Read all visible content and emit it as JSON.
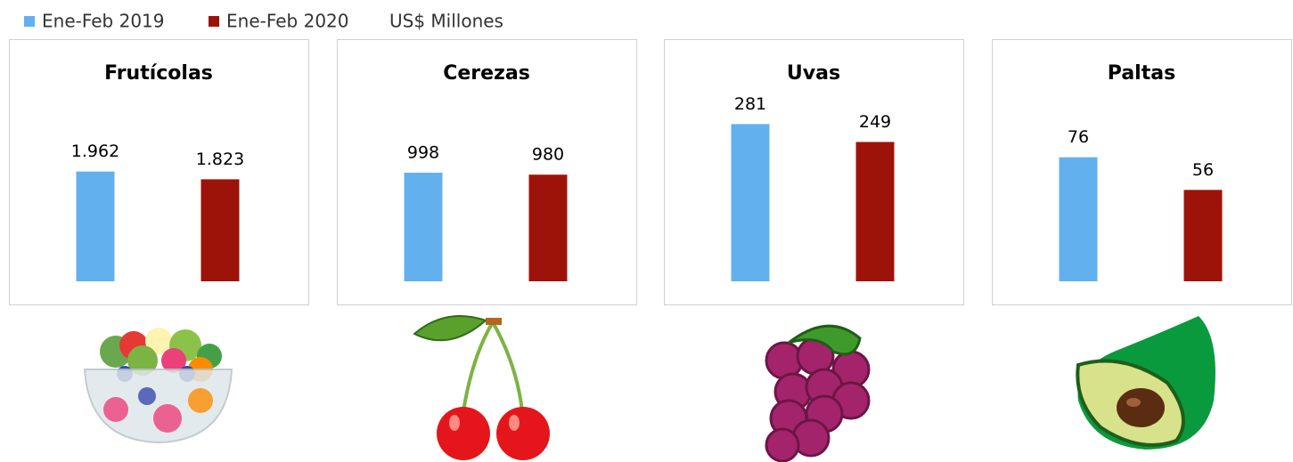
{
  "legend": {
    "items": [
      {
        "name": "Ene-Feb 2019",
        "color": "#63b0ef"
      },
      {
        "name": "Ene-Feb 2020",
        "color": "#9e1309"
      }
    ],
    "note": "US$ Millones"
  },
  "chart_data": [
    {
      "type": "bar",
      "title": "Frutícolas",
      "values": [
        1962,
        1823
      ],
      "value_labels": [
        "1.962",
        "1.823"
      ],
      "ylim": [
        0,
        3500
      ]
    },
    {
      "type": "bar",
      "title": "Cerezas",
      "values": [
        998,
        980
      ],
      "value_labels": [
        "998",
        "980"
      ],
      "ylim": [
        0,
        1800
      ]
    },
    {
      "type": "bar",
      "title": "Uvas",
      "values": [
        281,
        249
      ],
      "value_labels": [
        "281",
        "249"
      ],
      "ylim": [
        0,
        350
      ]
    },
    {
      "type": "bar",
      "title": "Paltas",
      "values": [
        76,
        56
      ],
      "value_labels": [
        "76",
        "56"
      ],
      "ylim": [
        0,
        120
      ]
    }
  ]
}
